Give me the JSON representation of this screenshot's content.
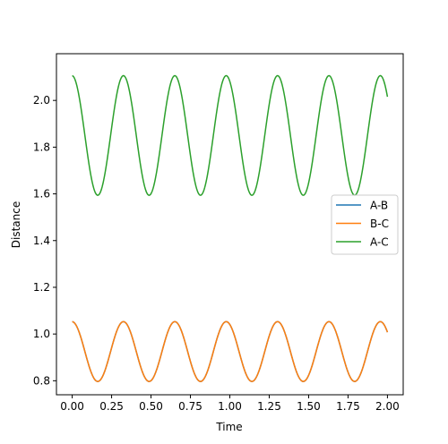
{
  "chart_data": {
    "type": "line",
    "title": "",
    "xlabel": "Time",
    "ylabel": "Distance",
    "xlim": [
      -0.1,
      2.1
    ],
    "ylim": [
      0.74,
      2.2
    ],
    "xticks": [
      0.0,
      0.25,
      0.5,
      0.75,
      1.0,
      1.25,
      1.5,
      1.75,
      2.0
    ],
    "xtick_labels": [
      "0.00",
      "0.25",
      "0.50",
      "0.75",
      "1.00",
      "1.25",
      "1.50",
      "1.75",
      "2.00"
    ],
    "yticks": [
      0.8,
      1.0,
      1.2,
      1.4,
      1.6,
      1.8,
      2.0
    ],
    "ytick_labels": [
      "0.8",
      "1.0",
      "1.2",
      "1.4",
      "1.6",
      "1.8",
      "2.0"
    ],
    "grid": false,
    "legend_position": "center-right",
    "x_range": [
      0.0,
      2.0
    ],
    "series": [
      {
        "name": "A-B",
        "color": "#1f77b4",
        "model": {
          "offset": 0.925,
          "amplitude": 0.128,
          "period": 0.326,
          "phase": 0.162,
          "description": "oscillation between ~0.797 and ~1.053"
        }
      },
      {
        "name": "B-C",
        "color": "#ff7f0e",
        "model": {
          "offset": 0.925,
          "amplitude": 0.128,
          "period": 0.326,
          "phase": 0.162,
          "description": "oscillation between ~0.797 and ~1.053"
        }
      },
      {
        "name": "A-C",
        "color": "#2ca02c",
        "model": {
          "offset": 1.85,
          "amplitude": 0.256,
          "period": 0.326,
          "phase": 0.162,
          "description": "oscillation between ~1.594 and ~2.106"
        }
      }
    ]
  }
}
